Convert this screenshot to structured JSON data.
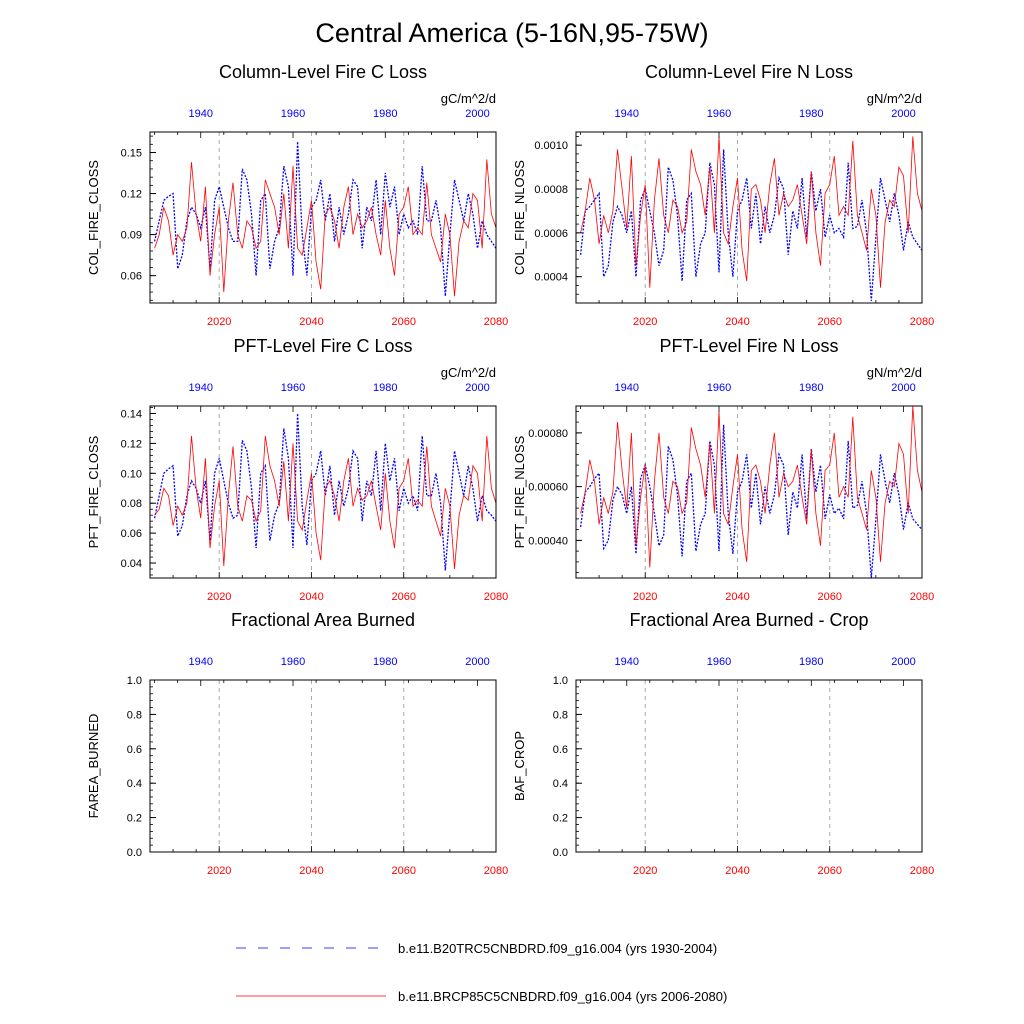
{
  "title": "Central America (5-16N,95-75W)",
  "colors": {
    "hist": "#0000ff",
    "future": "#ff0000",
    "axis": "#000000",
    "grid": "#aaaaaa"
  },
  "legend": [
    {
      "label": "b.e11.B20TRC5CNBDRD.f09_g16.004 (yrs 1930-2004)",
      "series": "hist"
    },
    {
      "label": "b.e11.BRCP85C5CNBDRD.f09_g16.004 (yrs 2006-2080)",
      "series": "future"
    }
  ],
  "chart_data": [
    {
      "type": "line",
      "title": "Column-Level Fire C Loss",
      "units": "gC/m^2/d",
      "ylabel": "COL_FIRE_CLOSS",
      "ylim": [
        0.04,
        0.165
      ],
      "yticks": [
        0.06,
        0.09,
        0.12,
        0.15
      ],
      "ytick_labels": [
        "0.06",
        "0.09",
        "0.12",
        "0.15"
      ],
      "top_x": {
        "range": [
          1929,
          2004
        ],
        "ticks": [
          1940,
          1960,
          1980,
          2000
        ]
      },
      "bottom_x": {
        "range": [
          2005,
          2080
        ],
        "ticks": [
          2020,
          2040,
          2060,
          2080
        ]
      },
      "series": [
        {
          "name": "b.e11.B20TRC5CNBDRD.f09_g16.004 (yrs 1930-2004)",
          "key": "hist",
          "style": "dashed",
          "x_start": 1930,
          "values": [
            0.085,
            0.1,
            0.115,
            0.118,
            0.12,
            0.065,
            0.075,
            0.1,
            0.11,
            0.105,
            0.095,
            0.11,
            0.065,
            0.115,
            0.125,
            0.11,
            0.095,
            0.085,
            0.085,
            0.138,
            0.13,
            0.105,
            0.06,
            0.115,
            0.12,
            0.065,
            0.085,
            0.095,
            0.14,
            0.125,
            0.06,
            0.158,
            0.09,
            0.06,
            0.11,
            0.115,
            0.13,
            0.1,
            0.12,
            0.085,
            0.11,
            0.09,
            0.105,
            0.13,
            0.125,
            0.08,
            0.11,
            0.1,
            0.13,
            0.09,
            0.135,
            0.11,
            0.125,
            0.09,
            0.105,
            0.095,
            0.1,
            0.09,
            0.14,
            0.1,
            0.1,
            0.115,
            0.095,
            0.045,
            0.09,
            0.13,
            0.115,
            0.1,
            0.12,
            0.105,
            0.08,
            0.1,
            0.09,
            0.085,
            0.08
          ]
        },
        {
          "name": "b.e11.BRCP85C5CNBDRD.f09_g16.004 (yrs 2006-2080)",
          "key": "future",
          "style": "solid",
          "x_start": 2006,
          "values": [
            0.08,
            0.09,
            0.11,
            0.1,
            0.075,
            0.09,
            0.085,
            0.095,
            0.143,
            0.105,
            0.085,
            0.125,
            0.06,
            0.09,
            0.11,
            0.048,
            0.1,
            0.128,
            0.09,
            0.08,
            0.1,
            0.095,
            0.08,
            0.085,
            0.13,
            0.12,
            0.11,
            0.09,
            0.12,
            0.08,
            0.14,
            0.08,
            0.075,
            0.095,
            0.115,
            0.07,
            0.05,
            0.105,
            0.11,
            0.1,
            0.08,
            0.11,
            0.125,
            0.09,
            0.105,
            0.095,
            0.1,
            0.11,
            0.09,
            0.075,
            0.115,
            0.08,
            0.06,
            0.105,
            0.11,
            0.125,
            0.09,
            0.095,
            0.09,
            0.128,
            0.09,
            0.08,
            0.07,
            0.105,
            0.09,
            0.045,
            0.085,
            0.1,
            0.095,
            0.12,
            0.115,
            0.08,
            0.145,
            0.105,
            0.095
          ]
        }
      ]
    },
    {
      "type": "line",
      "title": "Column-Level Fire N Loss",
      "units": "gN/m^2/d",
      "ylabel": "COL_FIRE_NLOSS",
      "ylim": [
        0.00028,
        0.00106
      ],
      "yticks": [
        0.0004,
        0.0006,
        0.0008,
        0.001
      ],
      "ytick_labels": [
        "0.0004",
        "0.0006",
        "0.0008",
        "0.0010"
      ],
      "top_x": {
        "range": [
          1929,
          2004
        ],
        "ticks": [
          1940,
          1960,
          1980,
          2000
        ]
      },
      "bottom_x": {
        "range": [
          2005,
          2080
        ],
        "ticks": [
          2020,
          2040,
          2060,
          2080
        ]
      },
      "series": [
        {
          "name": "b.e11.B20TRC5CNBDRD.f09_g16.004 (yrs 1930-2004)",
          "key": "hist",
          "style": "dashed",
          "x_start": 1930,
          "values": [
            0.0005,
            0.0007,
            0.00072,
            0.00075,
            0.00078,
            0.0004,
            0.00045,
            0.00065,
            0.00072,
            0.00068,
            0.0006,
            0.0007,
            0.0004,
            0.00075,
            0.0008,
            0.0007,
            0.0006,
            0.00045,
            0.00052,
            0.0009,
            0.00084,
            0.00068,
            0.00038,
            0.00075,
            0.00078,
            0.0004,
            0.00055,
            0.0006,
            0.00092,
            0.00082,
            0.00042,
            0.00098,
            0.0006,
            0.0004,
            0.0007,
            0.00075,
            0.00085,
            0.00062,
            0.00078,
            0.00055,
            0.00072,
            0.0006,
            0.00068,
            0.00085,
            0.0008,
            0.0005,
            0.0007,
            0.00062,
            0.00085,
            0.00058,
            0.00088,
            0.0007,
            0.0008,
            0.00058,
            0.00068,
            0.0006,
            0.00062,
            0.00058,
            0.00092,
            0.00062,
            0.00063,
            0.00075,
            0.0006,
            0.00029,
            0.00058,
            0.00085,
            0.00075,
            0.00065,
            0.00078,
            0.00068,
            0.00052,
            0.00065,
            0.00058,
            0.00055,
            0.00052
          ]
        },
        {
          "name": "b.e11.BRCP85C5CNBDRD.f09_g16.004 (yrs 2006-2080)",
          "key": "future",
          "style": "solid",
          "x_start": 2006,
          "values": [
            0.0006,
            0.0007,
            0.00085,
            0.00075,
            0.00055,
            0.00068,
            0.0006,
            0.0007,
            0.00098,
            0.0008,
            0.00062,
            0.00095,
            0.00045,
            0.00068,
            0.00082,
            0.00035,
            0.00075,
            0.00094,
            0.00068,
            0.0006,
            0.00075,
            0.00072,
            0.0006,
            0.00065,
            0.00098,
            0.00088,
            0.00082,
            0.00068,
            0.0009,
            0.0006,
            0.00104,
            0.0006,
            0.00055,
            0.00072,
            0.00085,
            0.00052,
            0.00038,
            0.0008,
            0.00082,
            0.00075,
            0.0006,
            0.00082,
            0.00094,
            0.00068,
            0.00078,
            0.00072,
            0.00075,
            0.00082,
            0.00068,
            0.00055,
            0.00088,
            0.0006,
            0.00045,
            0.00078,
            0.00082,
            0.00095,
            0.00068,
            0.00072,
            0.00068,
            0.00102,
            0.00068,
            0.0006,
            0.00052,
            0.0008,
            0.00068,
            0.00035,
            0.00065,
            0.00075,
            0.00072,
            0.0009,
            0.00086,
            0.0006,
            0.00104,
            0.00078,
            0.0007
          ]
        }
      ]
    },
    {
      "type": "line",
      "title": "PFT-Level Fire C Loss",
      "units": "gC/m^2/d",
      "ylabel": "PFT_FIRE_CLOSS",
      "ylim": [
        0.03,
        0.145
      ],
      "yticks": [
        0.04,
        0.06,
        0.08,
        0.1,
        0.12,
        0.14
      ],
      "ytick_labels": [
        "0.04",
        "0.06",
        "0.08",
        "0.10",
        "0.12",
        "0.14"
      ],
      "top_x": {
        "range": [
          1929,
          2004
        ],
        "ticks": [
          1940,
          1960,
          1980,
          2000
        ]
      },
      "bottom_x": {
        "range": [
          2005,
          2080
        ],
        "ticks": [
          2020,
          2040,
          2060,
          2080
        ]
      },
      "series": [
        {
          "name": "b.e11.B20TRC5CNBDRD.f09_g16.004 (yrs 1930-2004)",
          "key": "hist",
          "style": "dashed",
          "x_start": 1930,
          "values": [
            0.07,
            0.085,
            0.1,
            0.103,
            0.105,
            0.058,
            0.065,
            0.085,
            0.095,
            0.09,
            0.08,
            0.095,
            0.055,
            0.1,
            0.11,
            0.095,
            0.08,
            0.07,
            0.072,
            0.122,
            0.115,
            0.09,
            0.05,
            0.1,
            0.105,
            0.055,
            0.072,
            0.08,
            0.13,
            0.11,
            0.05,
            0.14,
            0.078,
            0.052,
            0.095,
            0.1,
            0.115,
            0.085,
            0.105,
            0.072,
            0.095,
            0.078,
            0.09,
            0.115,
            0.11,
            0.068,
            0.095,
            0.085,
            0.115,
            0.075,
            0.12,
            0.095,
            0.11,
            0.075,
            0.09,
            0.08,
            0.085,
            0.075,
            0.125,
            0.085,
            0.085,
            0.1,
            0.08,
            0.035,
            0.075,
            0.115,
            0.1,
            0.085,
            0.105,
            0.09,
            0.068,
            0.085,
            0.075,
            0.072,
            0.068
          ]
        },
        {
          "name": "b.e11.BRCP85C5CNBDRD.f09_g16.004 (yrs 2006-2080)",
          "key": "future",
          "style": "solid",
          "x_start": 2006,
          "values": [
            0.072,
            0.076,
            0.09,
            0.085,
            0.065,
            0.078,
            0.072,
            0.08,
            0.125,
            0.09,
            0.07,
            0.11,
            0.05,
            0.078,
            0.095,
            0.038,
            0.085,
            0.118,
            0.078,
            0.068,
            0.085,
            0.082,
            0.068,
            0.075,
            0.125,
            0.105,
            0.095,
            0.078,
            0.108,
            0.068,
            0.12,
            0.068,
            0.062,
            0.082,
            0.1,
            0.06,
            0.042,
            0.09,
            0.095,
            0.085,
            0.068,
            0.095,
            0.11,
            0.078,
            0.09,
            0.082,
            0.085,
            0.095,
            0.078,
            0.062,
            0.1,
            0.068,
            0.05,
            0.09,
            0.095,
            0.11,
            0.078,
            0.082,
            0.078,
            0.118,
            0.078,
            0.068,
            0.058,
            0.09,
            0.078,
            0.036,
            0.072,
            0.085,
            0.082,
            0.105,
            0.1,
            0.068,
            0.125,
            0.09,
            0.08
          ]
        }
      ]
    },
    {
      "type": "line",
      "title": "PFT-Level Fire N Loss",
      "units": "gN/m^2/d",
      "ylabel": "PFT_FIRE_NLOSS",
      "ylim": [
        0.00026,
        0.0009
      ],
      "yticks": [
        0.0004,
        0.0006,
        0.0008
      ],
      "ytick_labels": [
        "0.00040",
        "0.00060",
        "0.00080"
      ],
      "top_x": {
        "range": [
          1929,
          2004
        ],
        "ticks": [
          1940,
          1960,
          1980,
          2000
        ]
      },
      "bottom_x": {
        "range": [
          2005,
          2080
        ],
        "ticks": [
          2020,
          2040,
          2060,
          2080
        ]
      },
      "series": [
        {
          "name": "b.e11.B20TRC5CNBDRD.f09_g16.004 (yrs 1930-2004)",
          "key": "hist",
          "style": "dashed",
          "x_start": 1930,
          "values": [
            0.00045,
            0.00058,
            0.0006,
            0.00063,
            0.00065,
            0.00037,
            0.0004,
            0.00055,
            0.0006,
            0.00057,
            0.0005,
            0.0006,
            0.00035,
            0.00063,
            0.00068,
            0.0006,
            0.0005,
            0.00038,
            0.00042,
            0.00075,
            0.0007,
            0.00057,
            0.00034,
            0.00062,
            0.00065,
            0.00036,
            0.00046,
            0.0005,
            0.00077,
            0.00068,
            0.00036,
            0.00083,
            0.0005,
            0.00035,
            0.00058,
            0.00062,
            0.00072,
            0.00052,
            0.00065,
            0.00046,
            0.0006,
            0.0005,
            0.00057,
            0.00072,
            0.00068,
            0.00042,
            0.00058,
            0.00052,
            0.00072,
            0.00048,
            0.00074,
            0.00058,
            0.00068,
            0.00048,
            0.00057,
            0.0005,
            0.00052,
            0.00048,
            0.00077,
            0.00052,
            0.00053,
            0.00062,
            0.0005,
            0.00026,
            0.00048,
            0.00072,
            0.00062,
            0.00054,
            0.00065,
            0.00057,
            0.00044,
            0.00054,
            0.00048,
            0.00046,
            0.00044
          ]
        },
        {
          "name": "b.e11.BRCP85C5CNBDRD.f09_g16.004 (yrs 2006-2080)",
          "key": "future",
          "style": "solid",
          "x_start": 2006,
          "values": [
            0.0005,
            0.00058,
            0.0007,
            0.00062,
            0.00046,
            0.00056,
            0.0005,
            0.00058,
            0.00084,
            0.00066,
            0.00052,
            0.0008,
            0.00038,
            0.00056,
            0.00068,
            0.0003,
            0.00062,
            0.0008,
            0.00056,
            0.0005,
            0.00062,
            0.0006,
            0.0005,
            0.00054,
            0.00082,
            0.00074,
            0.00068,
            0.00056,
            0.00076,
            0.0005,
            0.00088,
            0.0005,
            0.00046,
            0.0006,
            0.00072,
            0.00044,
            0.00032,
            0.00066,
            0.00068,
            0.00062,
            0.0005,
            0.00068,
            0.0008,
            0.00056,
            0.00065,
            0.0006,
            0.00062,
            0.00068,
            0.00056,
            0.00046,
            0.00074,
            0.0005,
            0.00038,
            0.00066,
            0.00068,
            0.0008,
            0.00056,
            0.0006,
            0.00056,
            0.00086,
            0.00056,
            0.0005,
            0.00044,
            0.00066,
            0.00056,
            0.00032,
            0.00054,
            0.00062,
            0.0006,
            0.00076,
            0.00072,
            0.0005,
            0.0009,
            0.00066,
            0.00058
          ]
        }
      ]
    },
    {
      "type": "line",
      "title": "Fractional Area Burned",
      "units": "",
      "ylabel": "FAREA_BURNED",
      "ylim": [
        0,
        1
      ],
      "yticks": [
        0,
        0.2,
        0.4,
        0.6,
        0.8,
        1.0
      ],
      "ytick_labels": [
        "0.0",
        "0.2",
        "0.4",
        "0.6",
        "0.8",
        "1.0"
      ],
      "top_x": {
        "range": [
          1929,
          2004
        ],
        "ticks": [
          1940,
          1960,
          1980,
          2000
        ]
      },
      "bottom_x": {
        "range": [
          2005,
          2080
        ],
        "ticks": [
          2020,
          2040,
          2060,
          2080
        ]
      },
      "series": []
    },
    {
      "type": "line",
      "title": "Fractional Area Burned - Crop",
      "units": "",
      "ylabel": "BAF_CROP",
      "ylim": [
        0,
        1
      ],
      "yticks": [
        0,
        0.2,
        0.4,
        0.6,
        0.8,
        1.0
      ],
      "ytick_labels": [
        "0.0",
        "0.2",
        "0.4",
        "0.6",
        "0.8",
        "1.0"
      ],
      "top_x": {
        "range": [
          1929,
          2004
        ],
        "ticks": [
          1940,
          1960,
          1980,
          2000
        ]
      },
      "bottom_x": {
        "range": [
          2005,
          2080
        ],
        "ticks": [
          2020,
          2040,
          2060,
          2080
        ]
      },
      "series": []
    }
  ]
}
